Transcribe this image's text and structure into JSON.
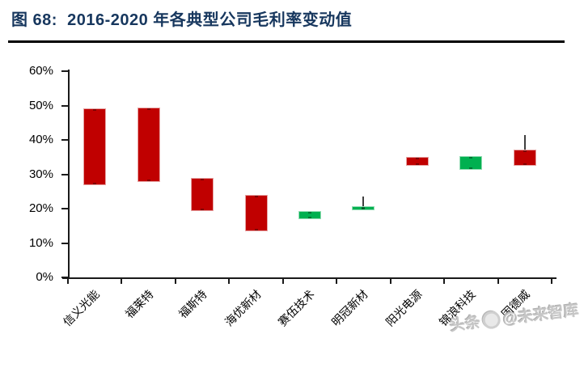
{
  "figure": {
    "title": "图 68:  2016-2020 年各典型公司毛利率变动值",
    "title_color": "#17375e"
  },
  "watermark": {
    "prefix": "头条",
    "suffix": "@未来智库",
    "logo": "toutiao-circle-logo"
  },
  "chart_data": {
    "type": "candlestick",
    "title": "2016-2020 年各典型公司毛利率变动值",
    "unit": "percent",
    "categories": [
      "信义光能",
      "福莱特",
      "福斯特",
      "海优新材",
      "赛伍技术",
      "明冠新材",
      "阳光电源",
      "锦浪科技",
      "固德威"
    ],
    "series": [
      {
        "name": "信义光能",
        "direction": "down",
        "body_top": 49.2,
        "body_bottom": 26.8
      },
      {
        "name": "福莱特",
        "direction": "down",
        "body_top": 49.4,
        "body_bottom": 27.8
      },
      {
        "name": "福斯特",
        "direction": "down",
        "body_top": 28.9,
        "body_bottom": 19.4
      },
      {
        "name": "海优新材",
        "direction": "down",
        "body_top": 23.9,
        "body_bottom": 13.4
      },
      {
        "name": "赛伍技术",
        "direction": "up",
        "body_top": 19.4,
        "body_bottom": 16.9
      },
      {
        "name": "明冠新材",
        "direction": "up",
        "body_top": 20.8,
        "body_bottom": 19.6,
        "high": 23.5
      },
      {
        "name": "阳光电源",
        "direction": "down",
        "body_top": 35.1,
        "body_bottom": 32.4
      },
      {
        "name": "锦浪科技",
        "direction": "up",
        "body_top": 35.4,
        "body_bottom": 31.3
      },
      {
        "name": "固德威",
        "direction": "down",
        "body_top": 37.1,
        "body_bottom": 32.4,
        "high": 41.4
      }
    ],
    "ylim": [
      0,
      60
    ],
    "ytick_labels": [
      "60%",
      "50%",
      "40%",
      "30%",
      "20%",
      "10%",
      "0%"
    ],
    "grid": false,
    "legend": false,
    "colors": {
      "decline": "#c00000",
      "rise": "#00b050"
    }
  }
}
